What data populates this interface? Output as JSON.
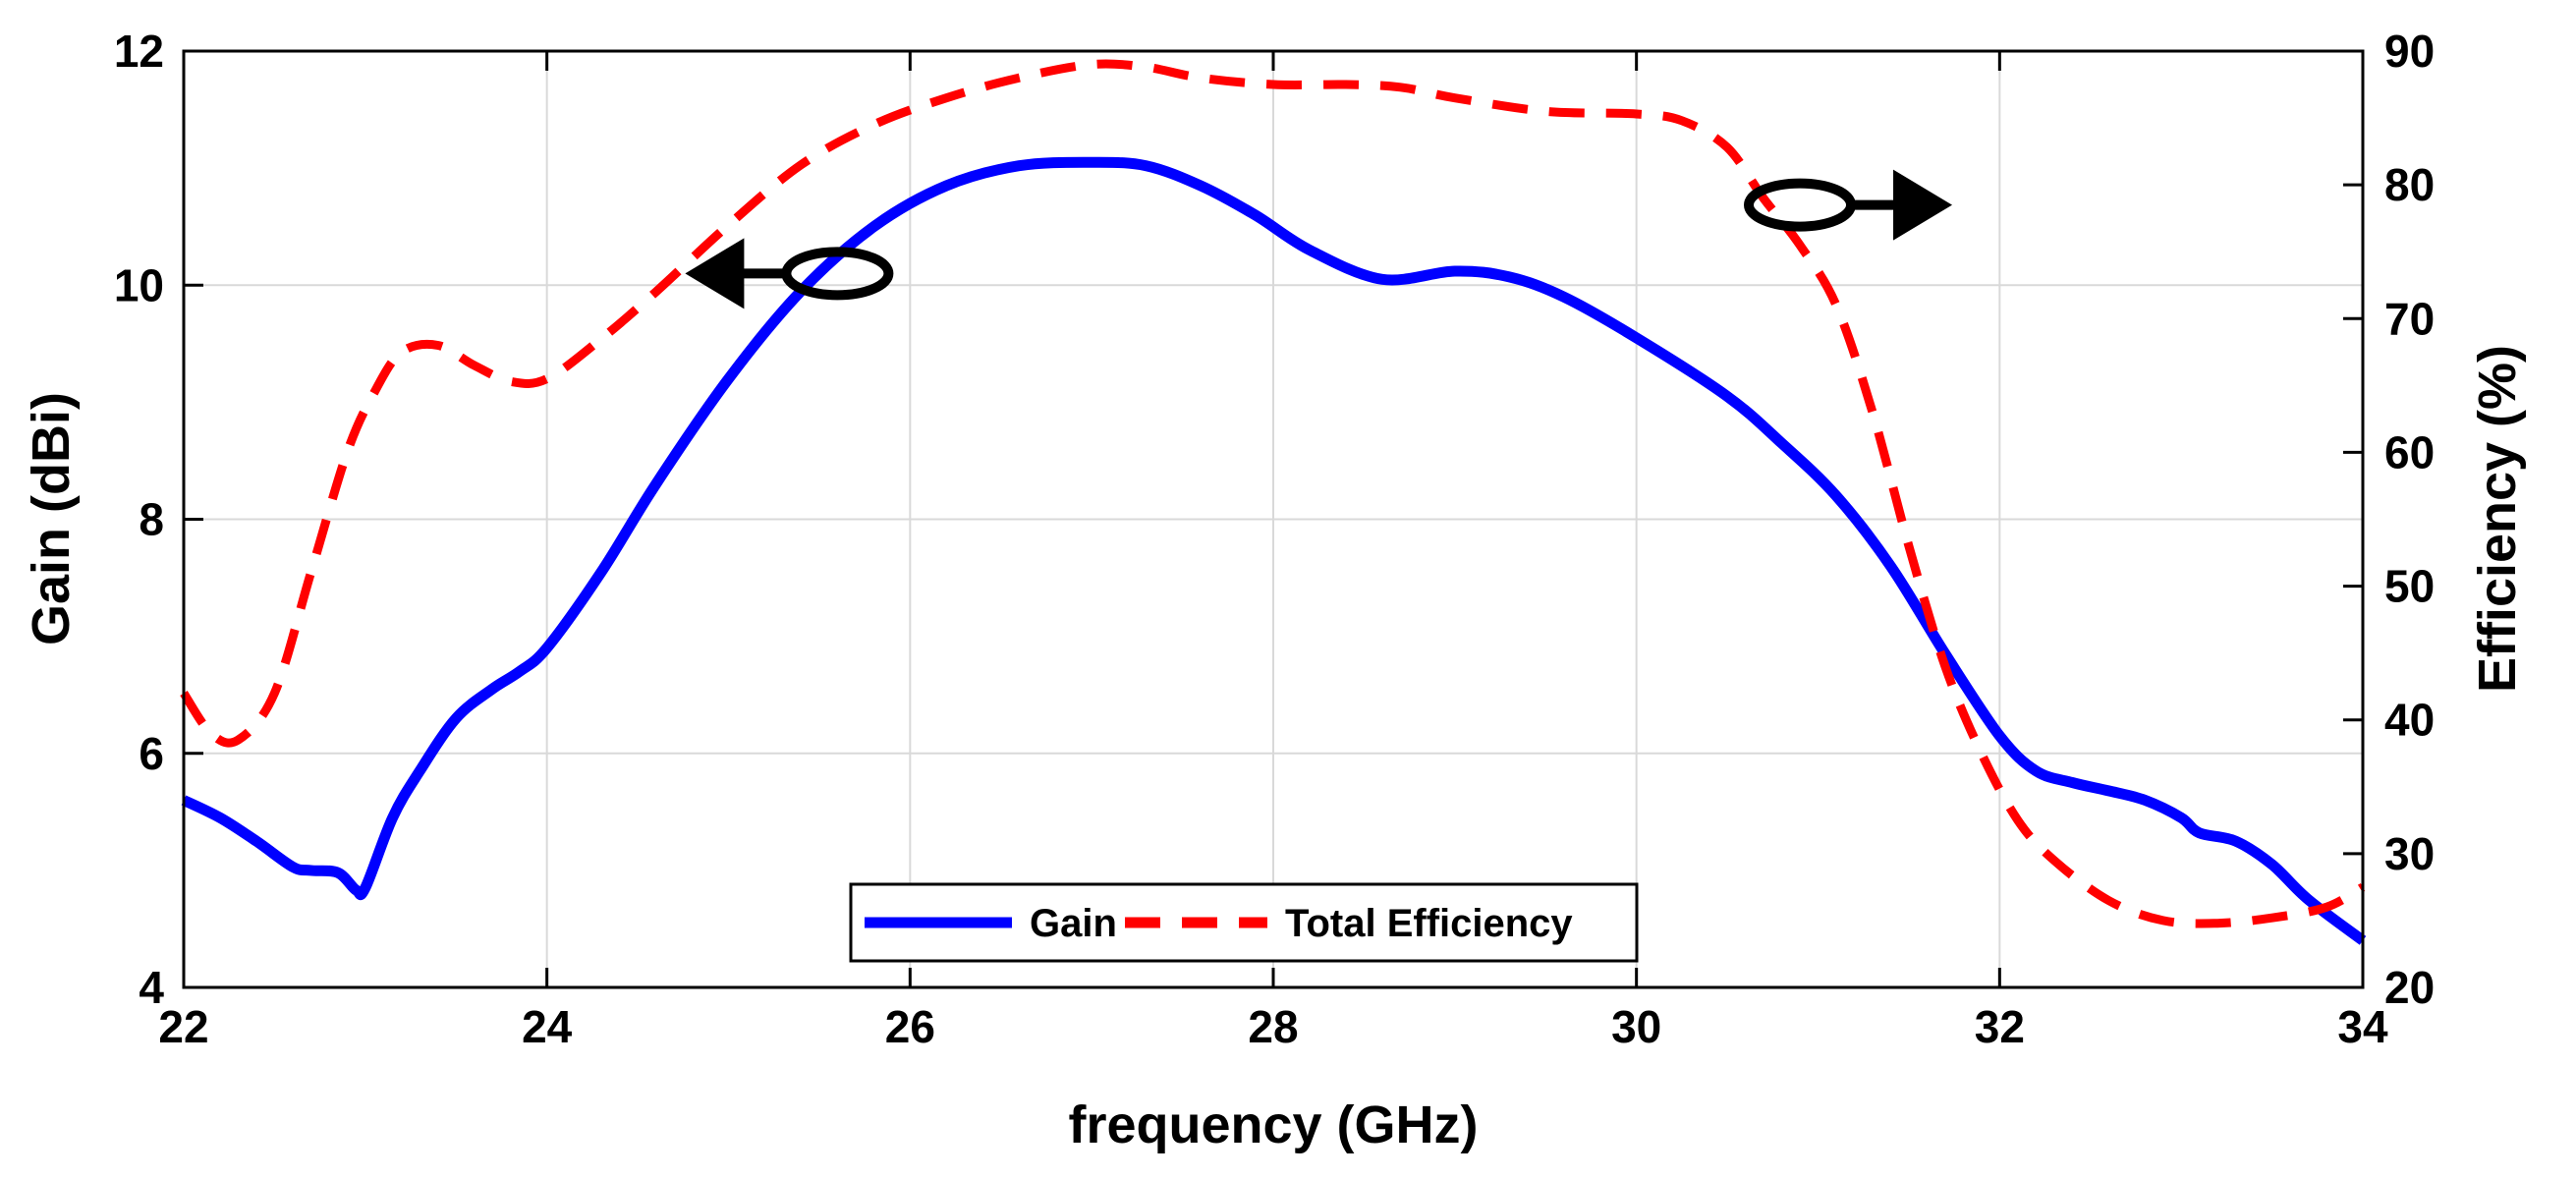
{
  "chart_data": {
    "type": "line",
    "title": "",
    "xlabel": "frequency (GHz)",
    "ylabel_left": "Gain (dBi)",
    "ylabel_right": "Efficiency (%)",
    "xlim": [
      22,
      34
    ],
    "ylim_left": [
      4,
      12
    ],
    "ylim_right": [
      20,
      90
    ],
    "x_ticks": [
      "22",
      "24",
      "26",
      "28",
      "30",
      "32",
      "34"
    ],
    "y_left_ticks": [
      "4",
      "6",
      "8",
      "10",
      "12"
    ],
    "y_right_ticks": [
      "20",
      "30",
      "40",
      "50",
      "60",
      "70",
      "80",
      "90"
    ],
    "grid": true,
    "legend_position": "bottom-center",
    "series": [
      {
        "name": "Gain",
        "axis": "left",
        "color": "#0000ff",
        "style": "solid",
        "x": [
          22,
          22.2,
          22.4,
          22.6,
          22.7,
          22.85,
          22.95,
          23.0,
          23.15,
          23.3,
          23.5,
          23.7,
          23.85,
          24.0,
          24.3,
          24.6,
          25.0,
          25.4,
          25.8,
          26.2,
          26.6,
          27.0,
          27.3,
          27.6,
          27.9,
          28.2,
          28.6,
          29.0,
          29.3,
          29.6,
          30.0,
          30.5,
          30.8,
          31.1,
          31.4,
          31.7,
          32.0,
          32.2,
          32.4,
          32.6,
          32.8,
          33.0,
          33.1,
          33.3,
          33.5,
          33.7,
          34.0
        ],
        "values": [
          5.6,
          5.45,
          5.25,
          5.03,
          5.0,
          4.98,
          4.83,
          4.85,
          5.45,
          5.85,
          6.3,
          6.55,
          6.7,
          6.9,
          7.55,
          8.3,
          9.2,
          9.95,
          10.5,
          10.85,
          11.02,
          11.05,
          11.02,
          10.85,
          10.6,
          10.3,
          10.05,
          10.12,
          10.07,
          9.9,
          9.55,
          9.05,
          8.65,
          8.2,
          7.6,
          6.85,
          6.15,
          5.85,
          5.75,
          5.68,
          5.6,
          5.45,
          5.32,
          5.25,
          5.05,
          4.75,
          4.4
        ]
      },
      {
        "name": "Total Efficiency",
        "axis": "right",
        "color": "#ff0000",
        "style": "dashed",
        "x": [
          22,
          22.15,
          22.3,
          22.5,
          22.7,
          22.9,
          23.05,
          23.2,
          23.4,
          23.6,
          23.8,
          24.0,
          24.3,
          24.6,
          25.0,
          25.4,
          25.8,
          26.2,
          26.6,
          27.0,
          27.3,
          27.6,
          28.0,
          28.4,
          28.7,
          29.0,
          29.5,
          30.0,
          30.25,
          30.5,
          30.7,
          30.9,
          31.1,
          31.3,
          31.5,
          31.7,
          31.9,
          32.1,
          32.3,
          32.6,
          32.9,
          33.2,
          33.5,
          33.8,
          34.0
        ],
        "values": [
          42,
          39,
          38.5,
          42,
          51,
          60,
          64.5,
          67.5,
          68,
          66.5,
          65.3,
          65.5,
          68.5,
          72,
          77,
          81.5,
          84.5,
          86.5,
          88,
          89,
          88.8,
          88,
          87.5,
          87.5,
          87.3,
          86.5,
          85.5,
          85.3,
          84.8,
          82.8,
          79,
          75.5,
          71,
          63,
          53,
          44,
          37.5,
          32.5,
          29.5,
          26.5,
          25,
          24.8,
          25.2,
          26,
          27.5
        ]
      }
    ],
    "annotations": [
      {
        "label": "left-arrow-marker",
        "target_axis": "left",
        "x": 25.6,
        "y": 10.1
      },
      {
        "label": "right-arrow-marker",
        "target_axis": "right",
        "x": 30.9,
        "y": 78.5
      }
    ]
  },
  "legend": {
    "gain_label": "Gain",
    "efficiency_label": "Total Efficiency"
  },
  "colors": {
    "gain": "#0000ff",
    "efficiency": "#ff0000",
    "grid": "#d9d9d9",
    "axis": "#000000"
  }
}
